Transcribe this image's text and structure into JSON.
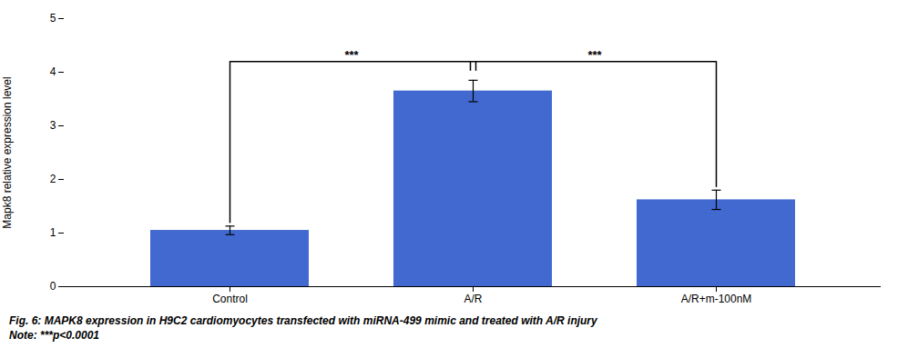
{
  "chart_data": {
    "type": "bar",
    "categories": [
      "Control",
      "A/R",
      "A/R+m-100nM"
    ],
    "values": [
      1.05,
      3.65,
      1.62
    ],
    "errors": [
      0.08,
      0.2,
      0.18
    ],
    "color": "#4269d0",
    "ylabel": "Mapk8 relative expression level",
    "ylim": [
      0,
      5
    ],
    "yticks": [
      0,
      1,
      2,
      3,
      4,
      5
    ],
    "grid": false,
    "annotations": [
      "***",
      "***"
    ],
    "caption": [
      "Fig. 6: MAPK8 expression in H9C2 cardiomyocytes transfected with miRNA-499 mimic and treated with A/R injury",
      "Note: ***p<0.0001"
    ]
  }
}
